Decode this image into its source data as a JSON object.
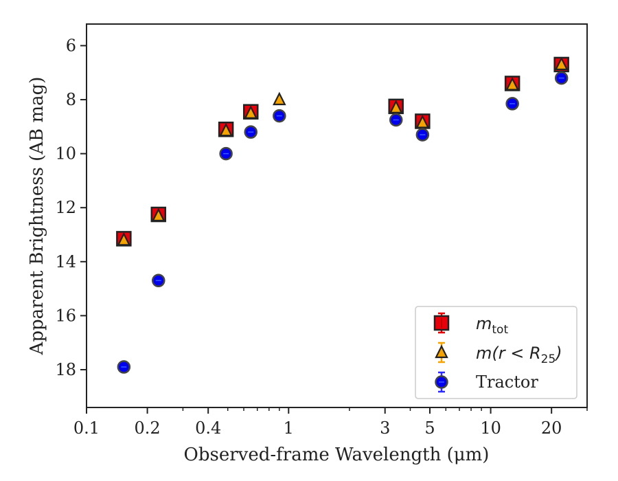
{
  "chart_data": {
    "type": "scatter",
    "xlabel": "Observed-frame Wavelength (μm)",
    "ylabel": "Apparent Brightness (AB mag)",
    "xscale": "log",
    "xlim": [
      0.1,
      30
    ],
    "ylim": [
      19.4,
      5.2
    ],
    "y_inverted": true,
    "x_ticks": [
      0.1,
      0.2,
      0.4,
      1,
      3,
      5,
      10,
      20
    ],
    "x_tick_labels": [
      "0.1",
      "0.2",
      "0.4",
      "1",
      "3",
      "5",
      "10",
      "20"
    ],
    "y_ticks": [
      6,
      8,
      10,
      12,
      14,
      16,
      18
    ],
    "y_tick_labels": [
      "6",
      "8",
      "10",
      "12",
      "14",
      "16",
      "18"
    ],
    "legend_position": "lower-right",
    "grid": false,
    "series": [
      {
        "name": "m_tot",
        "legend_main": "m",
        "legend_sub": "tot",
        "marker": "square",
        "color": "#e8000b",
        "x": [
          0.153,
          0.227,
          0.49,
          0.65,
          3.4,
          4.6,
          12.8,
          22.4
        ],
        "y": [
          13.15,
          12.25,
          9.1,
          8.45,
          8.25,
          8.8,
          7.4,
          6.7
        ]
      },
      {
        "name": "m(r < R25)",
        "legend_main": "m(r < R",
        "legend_sub": "25",
        "legend_close": ")",
        "marker": "triangle",
        "color": "#f5a300",
        "x": [
          0.153,
          0.227,
          0.49,
          0.65,
          0.9,
          3.4,
          4.6,
          12.8,
          22.4
        ],
        "y": [
          13.2,
          12.3,
          9.15,
          8.5,
          8.0,
          8.3,
          8.85,
          7.45,
          6.7
        ]
      },
      {
        "name": "Tractor",
        "marker": "circle",
        "color": "#0000ee",
        "x": [
          0.153,
          0.227,
          0.49,
          0.65,
          0.9,
          3.4,
          4.6,
          12.8,
          22.4
        ],
        "y": [
          17.9,
          14.7,
          10.0,
          9.2,
          8.6,
          8.75,
          9.3,
          8.15,
          7.2
        ]
      }
    ]
  }
}
